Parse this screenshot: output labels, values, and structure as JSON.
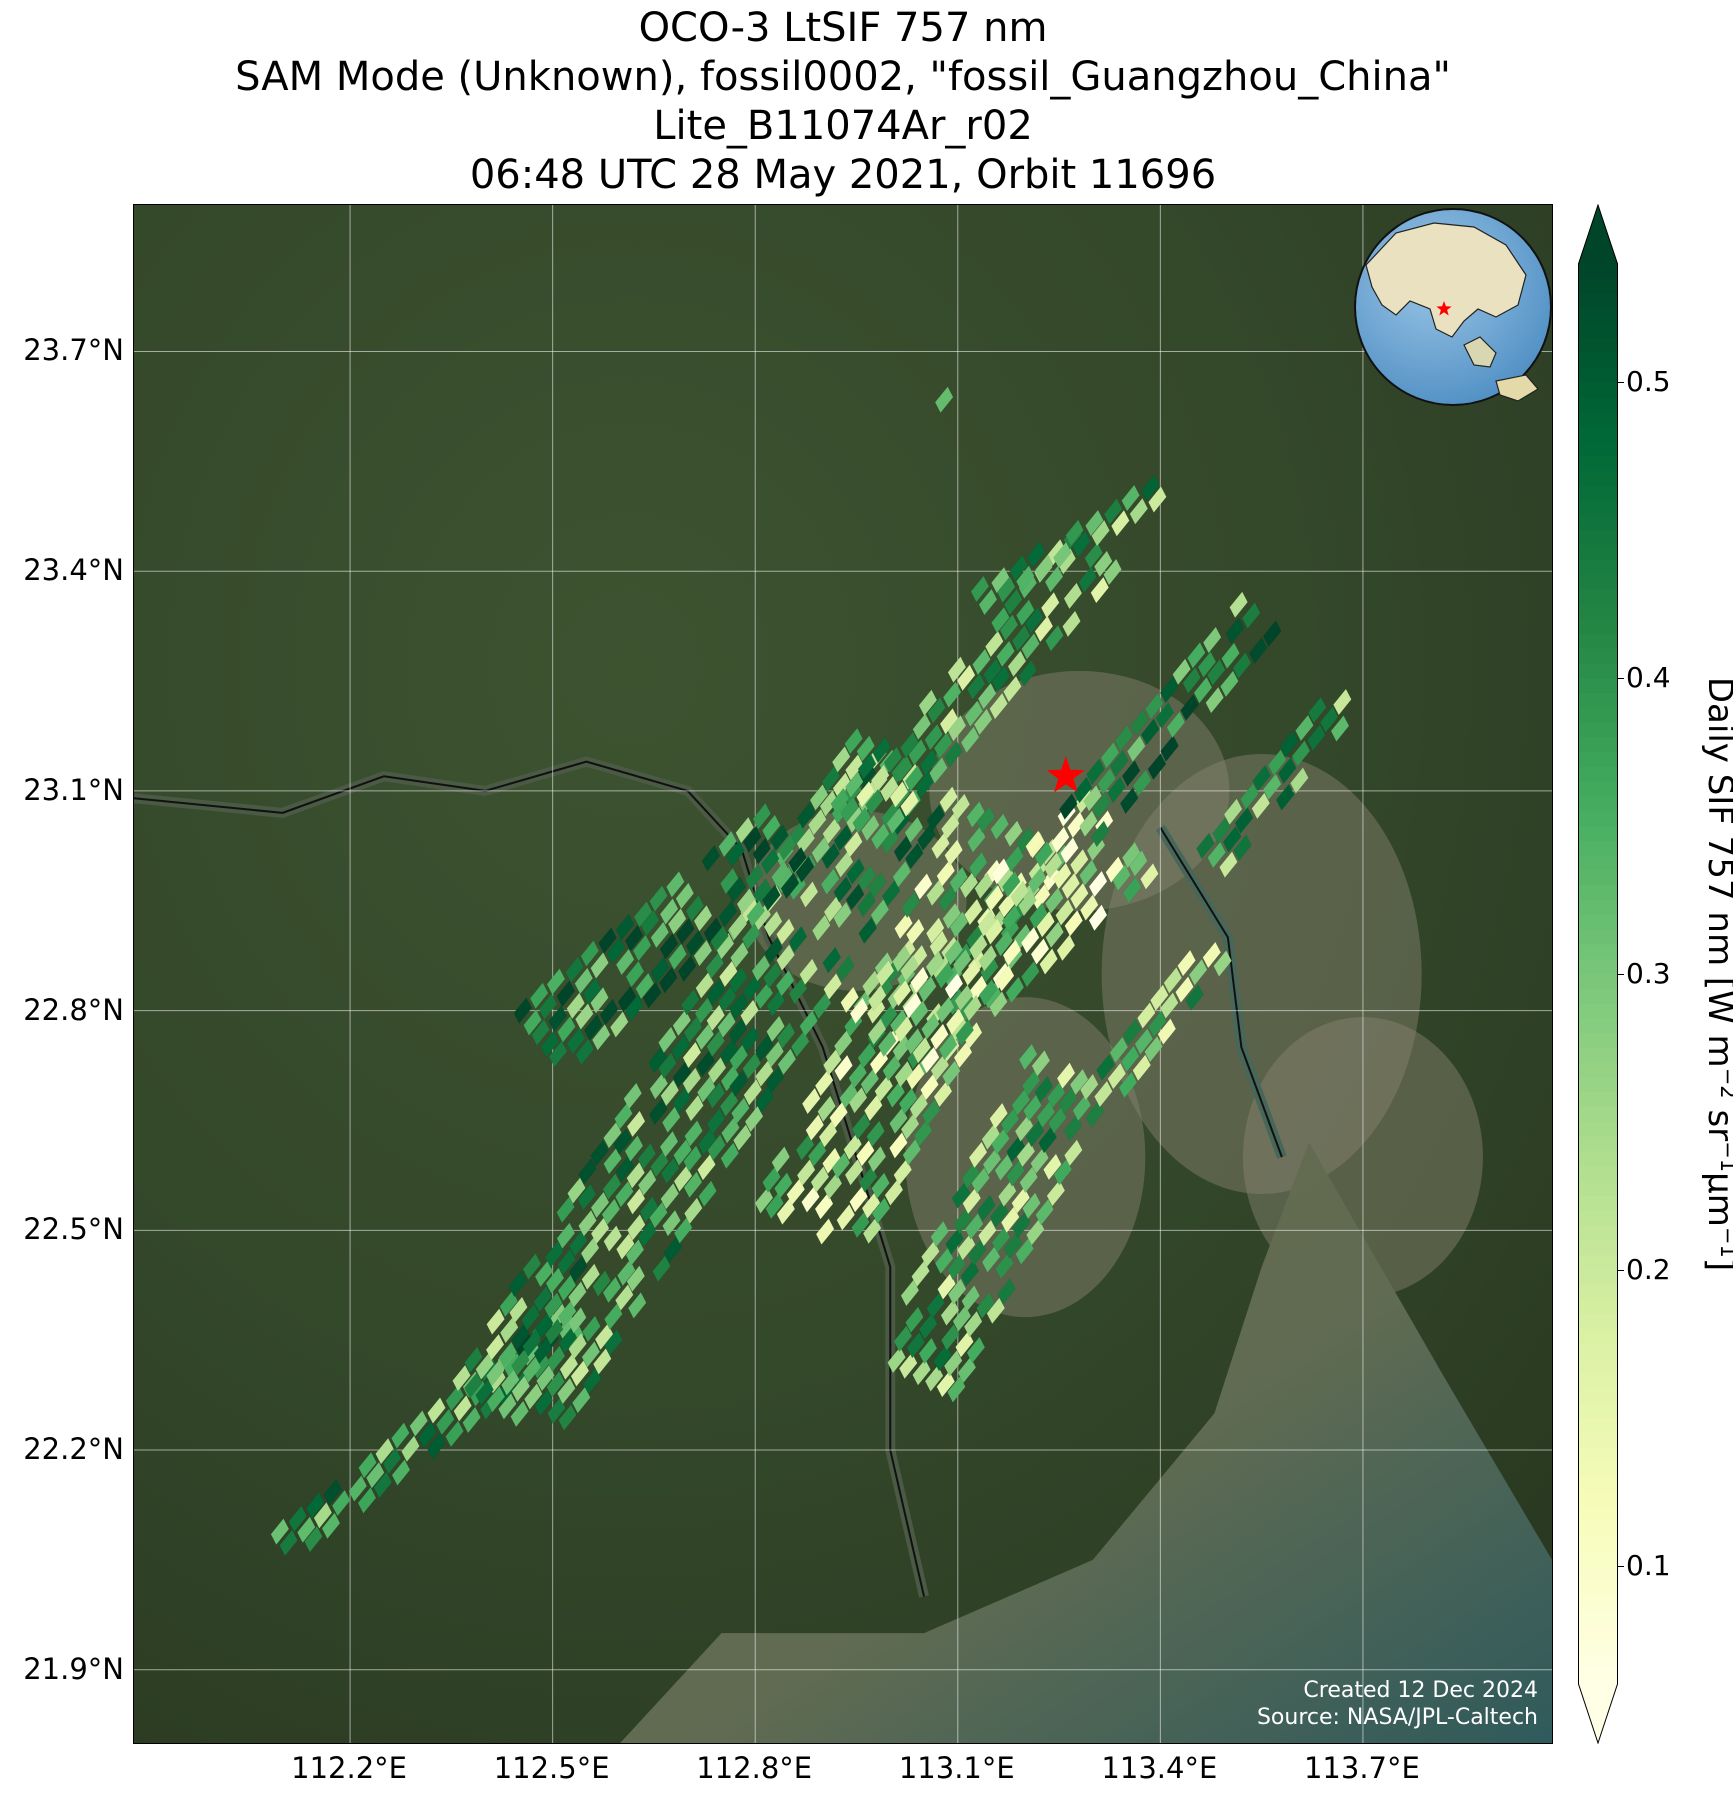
{
  "title": {
    "line1": "OCO-3 LtSIF 757 nm",
    "line2": "SAM Mode (Unknown), fossil0002, \"fossil_Guangzhou_China\"",
    "line3": "Lite_B11074Ar_r02",
    "line4": "06:48 UTC 28 May 2021, Orbit 11696"
  },
  "axes": {
    "lat_labels": [
      "23.7°N",
      "23.4°N",
      "23.1°N",
      "22.8°N",
      "22.5°N",
      "22.2°N",
      "21.9°N"
    ],
    "lon_labels": [
      "112.2°E",
      "112.5°E",
      "112.8°E",
      "113.1°E",
      "113.4°E",
      "113.7°E"
    ],
    "lat_values": [
      23.7,
      23.4,
      23.1,
      22.8,
      22.5,
      22.2,
      21.9
    ],
    "lon_values": [
      112.2,
      112.5,
      112.8,
      113.1,
      113.4,
      113.7
    ],
    "extent": {
      "lon_min": 111.88,
      "lon_max": 113.98,
      "lat_min": 21.8,
      "lat_max": 23.9
    },
    "grid": true
  },
  "target": {
    "name": "fossil_Guangzhou_China",
    "lon": 113.26,
    "lat": 23.12,
    "marker": "red-star"
  },
  "footer": {
    "created": "Created 12 Dec 2024",
    "source": "Source: NASA/JPL-Caltech"
  },
  "colorbar": {
    "label_main": "Daily SIF 757 nm [W m",
    "label_exp1": "−2",
    "label_mid1": " sr",
    "label_exp2": "−1",
    "label_mid2": "μm",
    "label_exp3": "−1",
    "label_end": "]",
    "tick_labels": [
      "0.5",
      "0.4",
      "0.3",
      "0.2",
      "0.1"
    ],
    "tick_values": [
      0.5,
      0.4,
      0.3,
      0.2,
      0.1
    ],
    "vmin": 0.06,
    "vmax": 0.54,
    "colormap": "YlGn",
    "extend": "both"
  },
  "chart_data": {
    "type": "heatmap",
    "description_units": "Daily SIF 757 nm [W m^-2 sr^-1 um^-1]",
    "swaths": [
      {
        "from": [
          112.12,
          22.06
        ],
        "to": [
          112.57,
          22.38
        ],
        "halfwidth": 0.04,
        "mean": 0.38
      },
      {
        "from": [
          112.45,
          22.25
        ],
        "to": [
          113.05,
          23.15
        ],
        "halfwidth": 0.1,
        "mean": 0.36
      },
      {
        "from": [
          112.5,
          22.75
        ],
        "to": [
          112.9,
          23.05
        ],
        "halfwidth": 0.07,
        "mean": 0.42
      },
      {
        "from": [
          112.9,
          22.5
        ],
        "to": [
          113.22,
          23.08
        ],
        "halfwidth": 0.1,
        "mean": 0.26
      },
      {
        "from": [
          113.06,
          22.3
        ],
        "to": [
          113.3,
          22.75
        ],
        "halfwidth": 0.08,
        "mean": 0.32
      },
      {
        "from": [
          113.0,
          22.75
        ],
        "to": [
          113.38,
          23.05
        ],
        "halfwidth": 0.09,
        "mean": 0.22
      },
      {
        "from": [
          112.97,
          23.05
        ],
        "to": [
          113.35,
          23.45
        ],
        "halfwidth": 0.06,
        "mean": 0.3
      },
      {
        "from": [
          113.15,
          23.35
        ],
        "to": [
          113.45,
          23.52
        ],
        "halfwidth": 0.03,
        "mean": 0.34
      },
      {
        "from": [
          113.3,
          23.05
        ],
        "to": [
          113.58,
          23.35
        ],
        "halfwidth": 0.05,
        "mean": 0.4
      },
      {
        "from": [
          113.5,
          23.0
        ],
        "to": [
          113.72,
          23.25
        ],
        "halfwidth": 0.04,
        "mean": 0.33
      },
      {
        "from": [
          113.35,
          22.7
        ],
        "to": [
          113.52,
          22.9
        ],
        "halfwidth": 0.04,
        "mean": 0.3
      },
      {
        "from": [
          113.07,
          23.6
        ],
        "to": [
          113.15,
          23.67
        ],
        "halfwidth": 0.02,
        "mean": 0.38
      }
    ],
    "value_range": [
      0.06,
      0.54
    ]
  }
}
